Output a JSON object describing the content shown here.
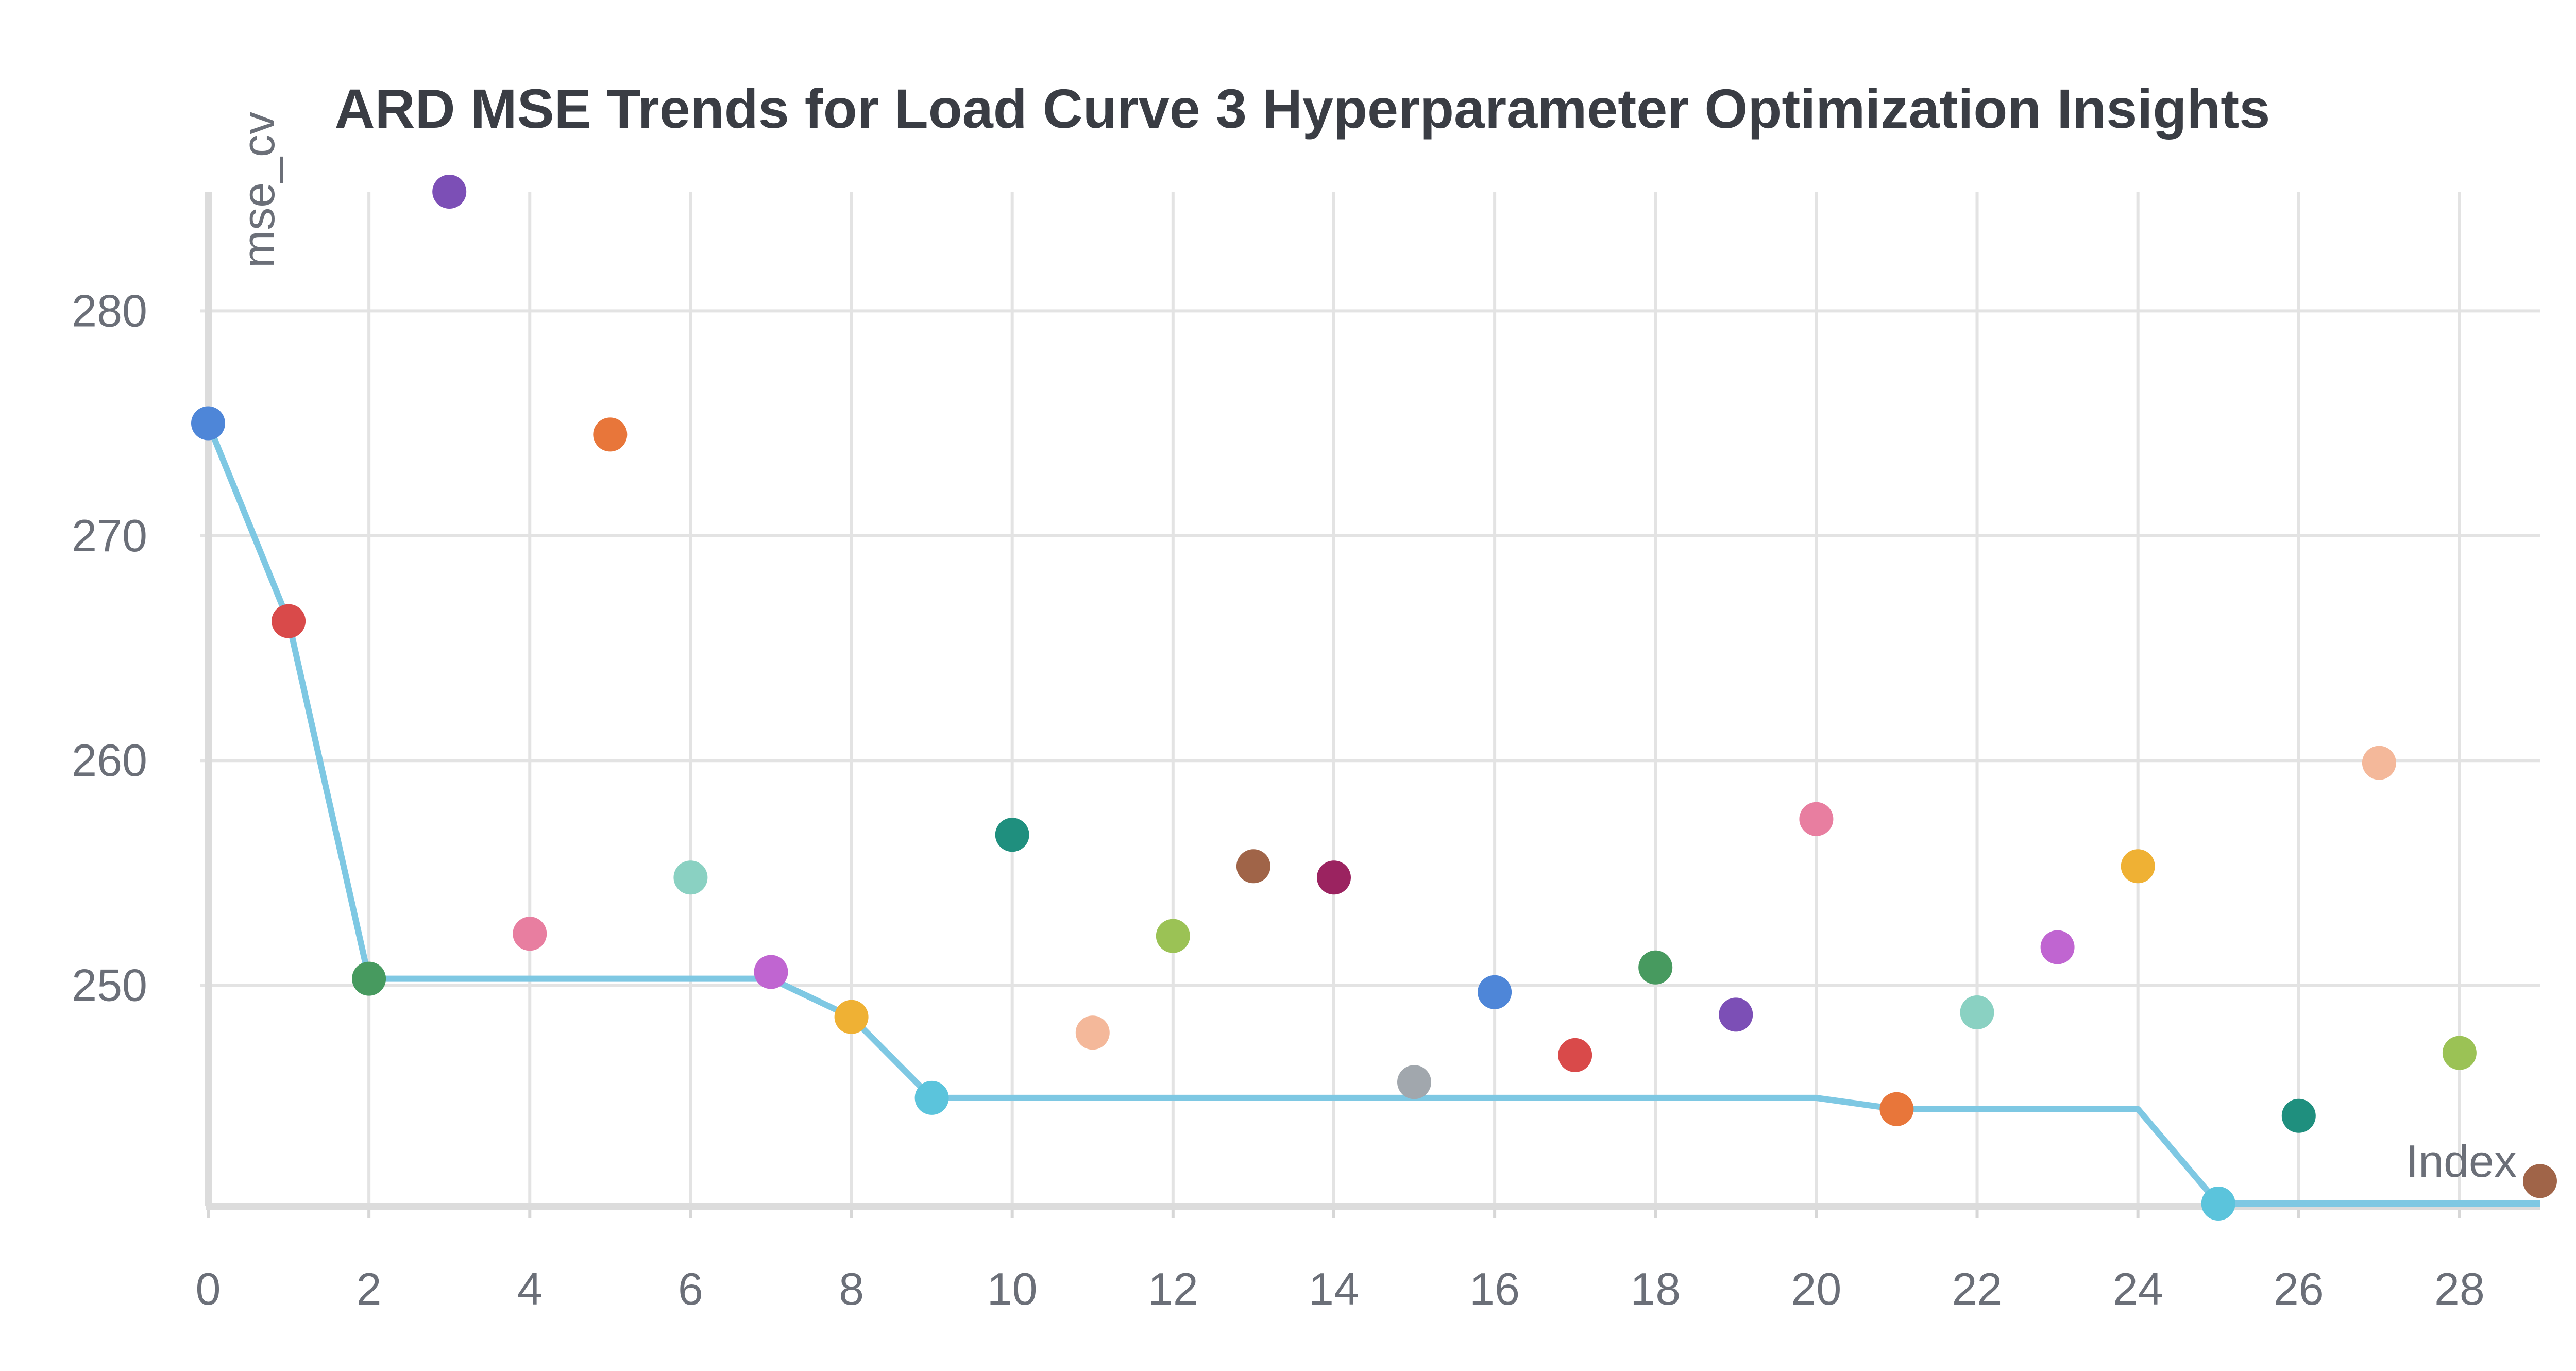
{
  "chart_data": {
    "type": "scatter",
    "title": "ARD MSE Trends for Load Curve 3 Hyperparameter Optimization Insights",
    "xlabel": "Index",
    "ylabel": "mse_cv",
    "xlim": [
      0,
      29
    ],
    "ylim": [
      240.3,
      285.3
    ],
    "x_ticks": [
      0,
      2,
      4,
      6,
      8,
      10,
      12,
      14,
      16,
      18,
      20,
      22,
      24,
      26,
      28
    ],
    "y_ticks": [
      250,
      260,
      270,
      280
    ],
    "grid": true,
    "series": [
      {
        "kind": "scatter",
        "x": [
          0,
          1,
          2,
          3,
          4,
          5,
          6,
          7,
          8,
          9,
          10,
          11,
          12,
          13,
          14,
          15,
          16,
          17,
          18,
          19,
          20,
          21,
          22,
          23,
          24,
          25,
          26,
          27,
          28,
          29
        ],
        "y": [
          275.0,
          266.2,
          250.3,
          285.3,
          252.3,
          274.5,
          254.8,
          250.6,
          248.6,
          245.0,
          256.7,
          247.9,
          252.2,
          255.3,
          254.8,
          245.7,
          249.7,
          246.9,
          250.8,
          248.7,
          257.4,
          244.5,
          248.8,
          251.7,
          255.3,
          240.3,
          244.2,
          259.9,
          247.0,
          241.3
        ],
        "colors": [
          "#4e86d8",
          "#d94a4a",
          "#479a5f",
          "#7c4fb6",
          "#e87ea0",
          "#e8763a",
          "#8ad1c2",
          "#c065d1",
          "#efb134",
          "#5bc4dc",
          "#1f8f7e",
          "#f4b89a",
          "#9bc255",
          "#a06448",
          "#9b2360",
          "#a1a7ad",
          "#4e86d8",
          "#d94a4a",
          "#479a5f",
          "#7c4fb6",
          "#e87ea0",
          "#e8763a",
          "#8ad1c2",
          "#c065d1",
          "#efb134",
          "#5bc4dc",
          "#1f8f7e",
          "#f4b89a",
          "#9bc255",
          "#a06448"
        ]
      },
      {
        "kind": "line",
        "color": "#7ec8e3",
        "x": [
          0,
          1,
          2,
          7,
          8,
          9,
          20,
          21,
          24,
          25,
          29
        ],
        "y": [
          275.0,
          266.2,
          250.3,
          250.3,
          248.6,
          245.0,
          245.0,
          244.5,
          244.5,
          240.3,
          240.3
        ]
      }
    ]
  }
}
